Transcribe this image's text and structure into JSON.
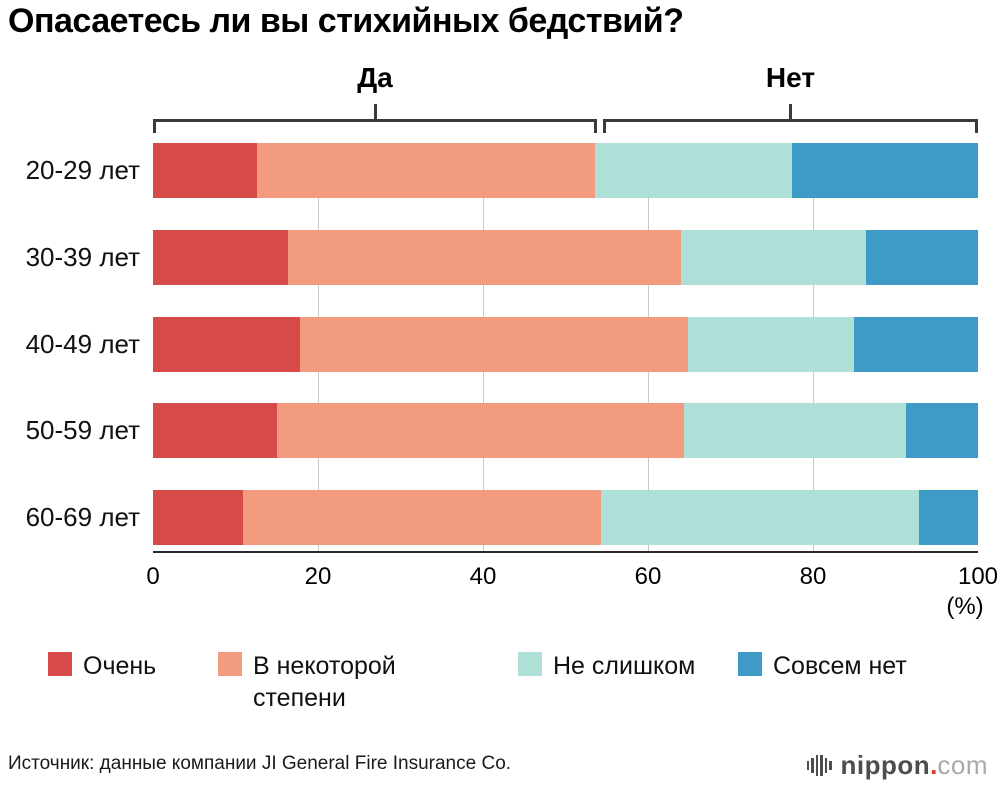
{
  "title": "Опасаетесь ли вы стихийных бедствий?",
  "source": "Источник: данные компании JI General Fire Insurance Co.",
  "branding": {
    "text_primary": "nippon",
    "separator": ".",
    "text_secondary": "com"
  },
  "chart_data": {
    "type": "bar",
    "stacked": true,
    "orientation": "horizontal",
    "title": "Опасаетесь ли вы стихийных бедствий?",
    "categories": [
      "20-29 лет",
      "30-39 лет",
      "40-49 лет",
      "50-59 лет",
      "60-69 лет"
    ],
    "series": [
      {
        "name": "Очень",
        "color": "#d64a4a",
        "values": [
          12.6,
          16.4,
          17.8,
          15.0,
          10.9
        ]
      },
      {
        "name": "В некоторой степени",
        "color": "#f29b7e",
        "values": [
          41.0,
          47.6,
          47.0,
          49.4,
          43.4
        ]
      },
      {
        "name": "Не слишком",
        "color": "#afe0d8",
        "values": [
          23.9,
          22.4,
          20.2,
          26.9,
          38.5
        ]
      },
      {
        "name": "Совсем нет",
        "color": "#3d9bc6",
        "values": [
          22.5,
          13.6,
          15.0,
          8.7,
          7.2
        ]
      }
    ],
    "x_axis": {
      "ticks": [
        0,
        20,
        40,
        60,
        80,
        100
      ],
      "unit_label": "(%)",
      "range": [
        0,
        100
      ]
    },
    "group_brackets": [
      {
        "label": "Да",
        "from": 0,
        "to": 53.8
      },
      {
        "label": "Нет",
        "from": 54.6,
        "to": 100
      }
    ],
    "legend_position": "bottom",
    "grid": true
  }
}
